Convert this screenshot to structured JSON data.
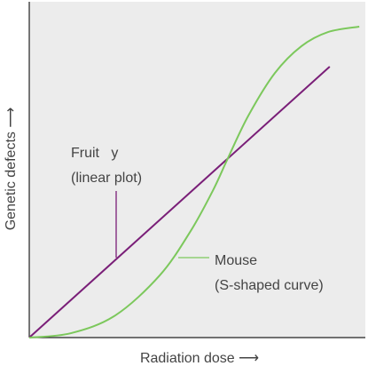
{
  "chart_data": {
    "type": "line",
    "x_label": "Radiation dose ⟶",
    "y_label": "Genetic defects ⟶",
    "xlim": [
      0,
      100
    ],
    "ylim": [
      0,
      100
    ],
    "series": [
      {
        "name": "Fruit   y",
        "subtitle": "(linear plot)",
        "color": "#7a1f78",
        "x": [
          0,
          89.4
        ],
        "values": [
          0,
          80.7
        ]
      },
      {
        "name": "Mouse",
        "subtitle": "(S-shaped curve)",
        "color": "#7cc85c",
        "x": [
          0,
          12.4,
          25.6,
          38.8,
          48.0,
          54.6,
          59.1,
          65.2,
          73.1,
          81.0,
          88.9,
          98.2
        ],
        "values": [
          0,
          1.3,
          6.6,
          18.5,
          31.7,
          43.7,
          53.4,
          66.1,
          78.8,
          86.8,
          91.0,
          92.6
        ]
      }
    ]
  }
}
